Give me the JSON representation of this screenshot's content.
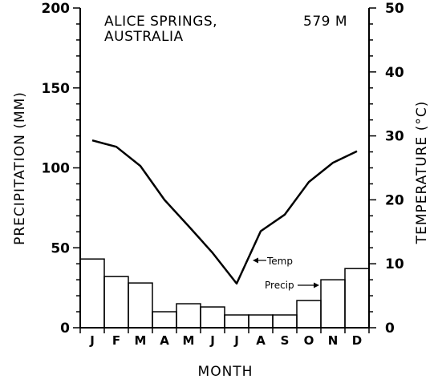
{
  "chart_data": {
    "type": "bar+line",
    "title": [
      "ALICE SPRINGS,",
      "AUSTRALIA"
    ],
    "elevation": "579 M",
    "xlabel": "MONTH",
    "ylabel_left": "PRECIPITATION (MM)",
    "ylabel_right": "TEMPERATURE (°C)",
    "categories": [
      "J",
      "F",
      "M",
      "A",
      "M",
      "J",
      "J",
      "A",
      "S",
      "O",
      "N",
      "D"
    ],
    "ylim_left": [
      0,
      200
    ],
    "ylim_right": [
      0,
      50
    ],
    "yticks_left": [
      0,
      50,
      100,
      150,
      200
    ],
    "yticks_right": [
      0,
      10,
      20,
      30,
      40,
      50
    ],
    "grid": false,
    "series": [
      {
        "name": "Precip",
        "kind": "bar",
        "axis": "left",
        "values": [
          43,
          32,
          28,
          10,
          15,
          13,
          8,
          8,
          8,
          17,
          30,
          37
        ]
      },
      {
        "name": "Temp",
        "kind": "line",
        "axis": "right",
        "values": [
          29.3,
          28.3,
          25.3,
          20.0,
          15.9,
          11.7,
          6.9,
          15.1,
          17.7,
          22.8,
          25.8,
          27.6
        ]
      }
    ],
    "annotations": {
      "temp_label": "Temp",
      "precip_label": "Precip"
    }
  }
}
